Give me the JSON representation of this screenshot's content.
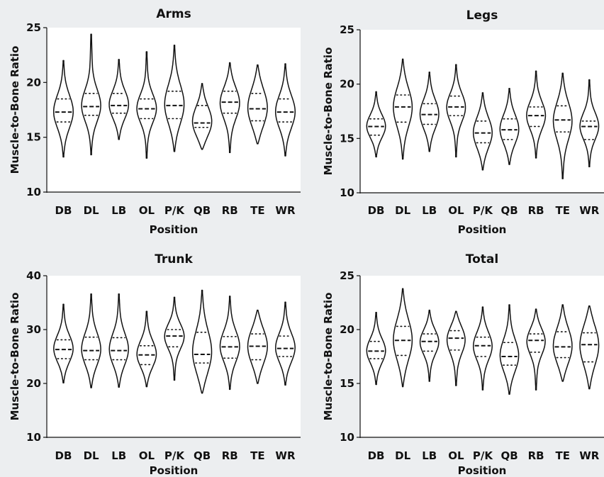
{
  "chart_data": [
    {
      "type": "violin",
      "title": "Arms",
      "xlabel": "Position",
      "ylabel": "Muscle-to-Bone Ratio",
      "ylim": [
        10,
        25
      ],
      "yticks": [
        10,
        15,
        20,
        25
      ],
      "categories": [
        "DB",
        "DL",
        "LB",
        "OL",
        "P/K",
        "QB",
        "RB",
        "TE",
        "WR"
      ],
      "series": [
        {
          "category": "DB",
          "min": 13.2,
          "max": 22.0,
          "q1": 16.4,
          "median": 17.3,
          "q3": 18.5
        },
        {
          "category": "DL",
          "min": 13.4,
          "max": 24.4,
          "q1": 17.0,
          "median": 17.8,
          "q3": 19.0
        },
        {
          "category": "LB",
          "min": 14.8,
          "max": 22.1,
          "q1": 17.2,
          "median": 17.9,
          "q3": 19.0
        },
        {
          "category": "OL",
          "min": 13.1,
          "max": 22.8,
          "q1": 16.7,
          "median": 17.6,
          "q3": 18.5
        },
        {
          "category": "P/K",
          "min": 13.7,
          "max": 23.4,
          "q1": 16.7,
          "median": 17.9,
          "q3": 19.2
        },
        {
          "category": "QB",
          "min": 13.9,
          "max": 19.9,
          "q1": 15.9,
          "median": 16.3,
          "q3": 17.9
        },
        {
          "category": "RB",
          "min": 13.6,
          "max": 21.8,
          "q1": 17.2,
          "median": 18.2,
          "q3": 19.2
        },
        {
          "category": "TE",
          "min": 14.4,
          "max": 21.6,
          "q1": 16.5,
          "median": 17.6,
          "q3": 19.0
        },
        {
          "category": "WR",
          "min": 13.3,
          "max": 21.7,
          "q1": 16.4,
          "median": 17.3,
          "q3": 18.5
        }
      ]
    },
    {
      "type": "violin",
      "title": "Legs",
      "xlabel": "Position",
      "ylabel": "Muscle-to-Bone Ratio",
      "ylim": [
        10,
        25
      ],
      "yticks": [
        10,
        15,
        20,
        25
      ],
      "categories": [
        "DB",
        "DL",
        "LB",
        "OL",
        "P/K",
        "QB",
        "RB",
        "TE",
        "WR"
      ],
      "series": [
        {
          "category": "DB",
          "min": 13.3,
          "max": 19.3,
          "q1": 15.3,
          "median": 16.1,
          "q3": 16.8
        },
        {
          "category": "DL",
          "min": 13.1,
          "max": 22.3,
          "q1": 16.5,
          "median": 17.9,
          "q3": 19.0
        },
        {
          "category": "LB",
          "min": 13.8,
          "max": 21.1,
          "q1": 16.3,
          "median": 17.2,
          "q3": 18.2
        },
        {
          "category": "OL",
          "min": 13.3,
          "max": 21.8,
          "q1": 17.1,
          "median": 17.9,
          "q3": 18.9
        },
        {
          "category": "P/K",
          "min": 12.1,
          "max": 19.2,
          "q1": 14.6,
          "median": 15.5,
          "q3": 16.6
        },
        {
          "category": "QB",
          "min": 12.6,
          "max": 19.6,
          "q1": 14.9,
          "median": 15.8,
          "q3": 16.8
        },
        {
          "category": "RB",
          "min": 13.2,
          "max": 21.2,
          "q1": 16.1,
          "median": 17.1,
          "q3": 17.9
        },
        {
          "category": "TE",
          "min": 11.3,
          "max": 21.0,
          "q1": 15.6,
          "median": 16.7,
          "q3": 18.0
        },
        {
          "category": "WR",
          "min": 12.4,
          "max": 20.4,
          "q1": 14.9,
          "median": 16.1,
          "q3": 16.6
        }
      ]
    },
    {
      "type": "violin",
      "title": "Trunk",
      "xlabel": "Position",
      "ylabel": "Muscle-to-Bone Ratio",
      "ylim": [
        10,
        40
      ],
      "yticks": [
        10,
        20,
        30,
        40
      ],
      "categories": [
        "DB",
        "DL",
        "LB",
        "OL",
        "P/K",
        "QB",
        "RB",
        "TE",
        "WR"
      ],
      "series": [
        {
          "category": "DB",
          "min": 20.1,
          "max": 34.7,
          "q1": 24.6,
          "median": 26.3,
          "q3": 28.1
        },
        {
          "category": "DL",
          "min": 19.2,
          "max": 36.6,
          "q1": 24.4,
          "median": 26.1,
          "q3": 28.6
        },
        {
          "category": "LB",
          "min": 19.3,
          "max": 36.6,
          "q1": 24.4,
          "median": 26.1,
          "q3": 28.5
        },
        {
          "category": "OL",
          "min": 19.4,
          "max": 33.4,
          "q1": 23.5,
          "median": 25.3,
          "q3": 27.0
        },
        {
          "category": "P/K",
          "min": 20.6,
          "max": 36.0,
          "q1": 26.8,
          "median": 28.8,
          "q3": 30.0
        },
        {
          "category": "QB",
          "min": 18.2,
          "max": 37.3,
          "q1": 23.8,
          "median": 25.4,
          "q3": 29.5
        },
        {
          "category": "RB",
          "min": 18.9,
          "max": 36.2,
          "q1": 24.7,
          "median": 26.8,
          "q3": 28.7
        },
        {
          "category": "TE",
          "min": 20.0,
          "max": 33.6,
          "q1": 24.4,
          "median": 26.9,
          "q3": 29.2
        },
        {
          "category": "WR",
          "min": 19.7,
          "max": 35.1,
          "q1": 25.0,
          "median": 26.5,
          "q3": 28.8
        }
      ]
    },
    {
      "type": "violin",
      "title": "Total",
      "xlabel": "Position",
      "ylabel": "Muscle-to-Bone Ratio",
      "ylim": [
        10,
        25
      ],
      "yticks": [
        10,
        15,
        20,
        25
      ],
      "categories": [
        "DB",
        "DL",
        "LB",
        "OL",
        "P/K",
        "QB",
        "RB",
        "TE",
        "WR"
      ],
      "series": [
        {
          "category": "DB",
          "min": 14.9,
          "max": 21.6,
          "q1": 17.3,
          "median": 18.0,
          "q3": 18.9
        },
        {
          "category": "DL",
          "min": 14.7,
          "max": 23.8,
          "q1": 17.6,
          "median": 19.0,
          "q3": 20.3
        },
        {
          "category": "LB",
          "min": 15.2,
          "max": 21.8,
          "q1": 18.0,
          "median": 18.9,
          "q3": 19.6
        },
        {
          "category": "OL",
          "min": 14.8,
          "max": 21.7,
          "q1": 18.1,
          "median": 19.2,
          "q3": 19.9
        },
        {
          "category": "P/K",
          "min": 14.4,
          "max": 22.1,
          "q1": 17.5,
          "median": 18.5,
          "q3": 19.3
        },
        {
          "category": "QB",
          "min": 14.0,
          "max": 22.3,
          "q1": 16.7,
          "median": 17.5,
          "q3": 18.8
        },
        {
          "category": "RB",
          "min": 14.4,
          "max": 21.9,
          "q1": 17.9,
          "median": 19.0,
          "q3": 19.6
        },
        {
          "category": "TE",
          "min": 15.2,
          "max": 22.3,
          "q1": 17.4,
          "median": 18.4,
          "q3": 19.8
        },
        {
          "category": "WR",
          "min": 14.5,
          "max": 22.2,
          "q1": 17.0,
          "median": 18.6,
          "q3": 19.7
        }
      ]
    }
  ]
}
